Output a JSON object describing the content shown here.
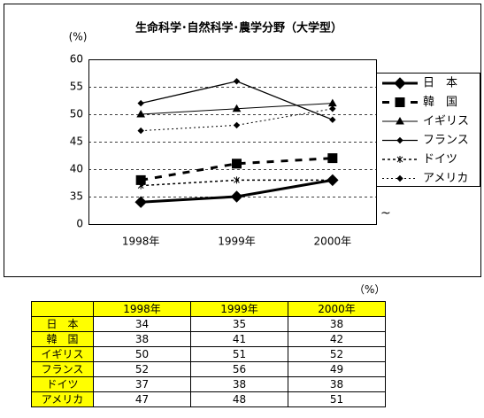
{
  "chart_data": {
    "type": "line",
    "title": "生命科学･自然科学･農学分野（大学型）",
    "y_unit": "(%)",
    "categories": [
      "1998年",
      "1999年",
      "2000年"
    ],
    "ylim": [
      0,
      60
    ],
    "axis_break": 30,
    "yticks": [
      0,
      35,
      40,
      45,
      50,
      55,
      60
    ],
    "grid": true,
    "series": [
      {
        "name": "日　本",
        "color": "#000000",
        "marker": "diamond",
        "dash": "none",
        "width": 3,
        "values": [
          34,
          35,
          38
        ]
      },
      {
        "name": "韓　国",
        "color": "#000000",
        "marker": "square",
        "dash": "8,8",
        "width": 3,
        "values": [
          38,
          41,
          42
        ]
      },
      {
        "name": "イギリス",
        "color": "#000000",
        "marker": "triangle",
        "dash": "none",
        "width": 1,
        "values": [
          50,
          51,
          52
        ]
      },
      {
        "name": "フランス",
        "color": "#000000",
        "marker": "small-diamond",
        "dash": "none",
        "width": 1.3,
        "values": [
          52,
          56,
          49
        ]
      },
      {
        "name": "ドイツ",
        "color": "#000000",
        "marker": "star",
        "dash": "3,3",
        "width": 1.5,
        "values": [
          37,
          38,
          38
        ]
      },
      {
        "name": "アメリカ",
        "color": "#000000",
        "marker": "small-diamond",
        "dash": "2,3",
        "width": 1,
        "values": [
          47,
          48,
          51
        ]
      }
    ],
    "table_unit": "（%）"
  }
}
